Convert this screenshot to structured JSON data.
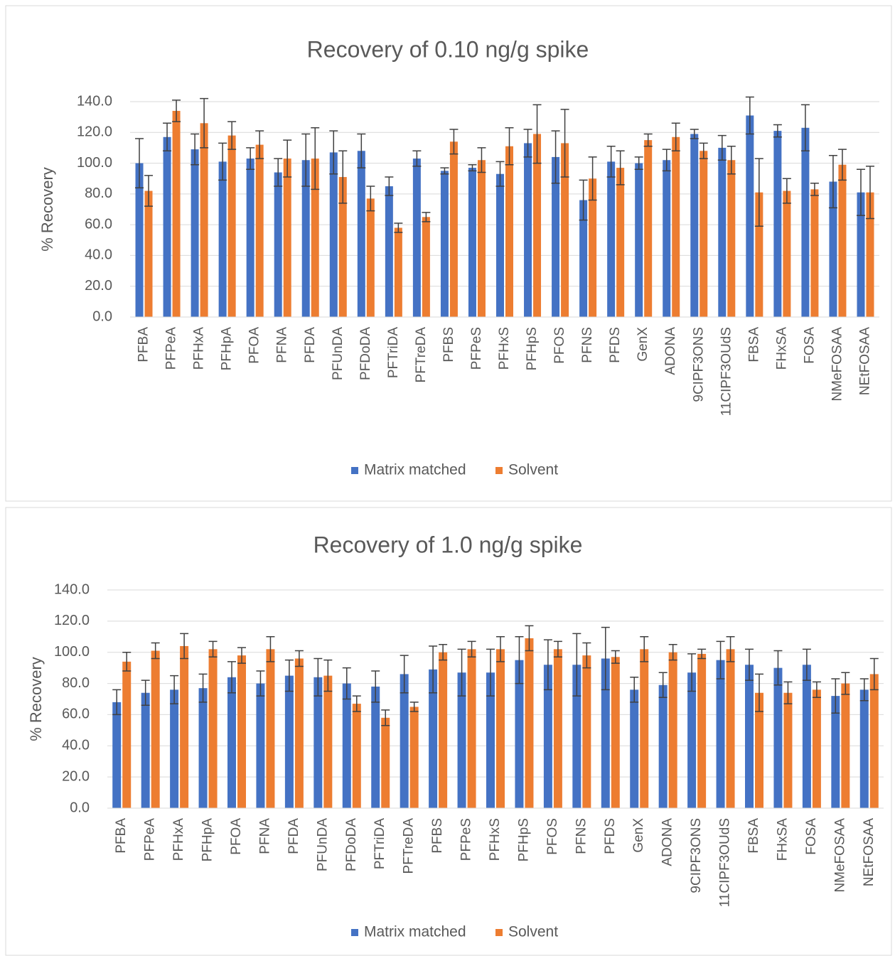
{
  "chart_data": [
    {
      "type": "bar",
      "title": "Recovery of 0.10 ng/g spike",
      "y_label": "% Recovery",
      "categories": [
        "PFBA",
        "PFPeA",
        "PFHxA",
        "PFHpA",
        "PFOA",
        "PFNA",
        "PFDA",
        "PFUnDA",
        "PFDoDA",
        "PFTriDA",
        "PFTreDA",
        "PFBS",
        "PFPeS",
        "PFHxS",
        "PFHpS",
        "PFOS",
        "PFNS",
        "PFDS",
        "GenX",
        "ADONA",
        "9CIPF3ONS",
        "11CIPF3OUdS",
        "FBSA",
        "FHxSA",
        "FOSA",
        "NMeFOSAA",
        "NEtFOSAA"
      ],
      "series": [
        {
          "name": "Matrix matched",
          "color": "#4472c4",
          "values": [
            100,
            117,
            109,
            101,
            103,
            94,
            102,
            107,
            108,
            85,
            103,
            95,
            97,
            93,
            113,
            104,
            76,
            101,
            100,
            102,
            119,
            110,
            131,
            121,
            123,
            88,
            81
          ],
          "errors": [
            16,
            9,
            10,
            12,
            7,
            9,
            17,
            14,
            11,
            6,
            5,
            2,
            2,
            8,
            9,
            17,
            13,
            10,
            4,
            7,
            3,
            8,
            12,
            4,
            15,
            17,
            15
          ]
        },
        {
          "name": "Solvent",
          "color": "#ed7d31",
          "values": [
            82,
            134,
            126,
            118,
            112,
            103,
            103,
            91,
            77,
            58,
            65,
            114,
            102,
            111,
            119,
            113,
            90,
            97,
            115,
            117,
            108,
            102,
            81,
            82,
            83,
            99,
            81
          ],
          "errors": [
            10,
            7,
            16,
            9,
            9,
            12,
            20,
            17,
            8,
            3,
            3,
            8,
            8,
            12,
            19,
            22,
            14,
            11,
            4,
            9,
            5,
            9,
            22,
            8,
            4,
            10,
            17
          ]
        }
      ],
      "ylim": [
        0,
        140
      ],
      "yticks": [
        {
          "value": 0,
          "label": "0.0"
        },
        {
          "value": 20,
          "label": "20.0"
        },
        {
          "value": 40,
          "label": "40.0"
        },
        {
          "value": 60,
          "label": "60.0"
        },
        {
          "value": 80,
          "label": "80.0"
        },
        {
          "value": 100,
          "label": "100.0"
        },
        {
          "value": 120,
          "label": "120.0"
        },
        {
          "value": 140,
          "label": "140.0"
        }
      ],
      "grid": true,
      "legend": "bottom"
    },
    {
      "type": "bar",
      "title": "Recovery of 1.0 ng/g spike",
      "y_label": "% Recovery",
      "categories": [
        "PFBA",
        "PFPeA",
        "PFHxA",
        "PFHpA",
        "PFOA",
        "PFNA",
        "PFDA",
        "PFUnDA",
        "PFDoDA",
        "PFTriDA",
        "PFTreDA",
        "PFBS",
        "PFPeS",
        "PFHxS",
        "PFHpS",
        "PFOS",
        "PFNS",
        "PFDS",
        "GenX",
        "ADONA",
        "9CIPF3ONS",
        "11CIPF3OUdS",
        "FBSA",
        "FHxSA",
        "FOSA",
        "NMeFOSAA",
        "NEtFOSAA"
      ],
      "series": [
        {
          "name": "Matrix matched",
          "color": "#4472c4",
          "values": [
            68,
            74,
            76,
            77,
            84,
            80,
            85,
            84,
            80,
            78,
            86,
            89,
            87,
            87,
            95,
            92,
            92,
            96,
            76,
            79,
            87,
            95,
            92,
            90,
            92,
            72,
            76
          ],
          "errors": [
            8,
            8,
            9,
            9,
            10,
            8,
            10,
            12,
            10,
            10,
            12,
            15,
            15,
            15,
            15,
            16,
            20,
            20,
            8,
            8,
            12,
            12,
            10,
            11,
            10,
            11,
            7
          ]
        },
        {
          "name": "Solvent",
          "color": "#ed7d31",
          "values": [
            94,
            101,
            104,
            102,
            98,
            102,
            96,
            85,
            67,
            58,
            65,
            100,
            102,
            102,
            109,
            102,
            98,
            97,
            102,
            100,
            99,
            102,
            74,
            74,
            76,
            80,
            86
          ],
          "errors": [
            6,
            5,
            8,
            5,
            5,
            8,
            5,
            10,
            5,
            5,
            3,
            5,
            5,
            8,
            8,
            5,
            8,
            4,
            8,
            5,
            3,
            8,
            12,
            7,
            5,
            7,
            10
          ]
        }
      ],
      "ylim": [
        0,
        140
      ],
      "yticks": [
        {
          "value": 0,
          "label": "0.0"
        },
        {
          "value": 20,
          "label": "20.0"
        },
        {
          "value": 40,
          "label": "40.0"
        },
        {
          "value": 60,
          "label": "60.0"
        },
        {
          "value": 80,
          "label": "80.0"
        },
        {
          "value": 100,
          "label": "100.0"
        },
        {
          "value": 120,
          "label": "120.0"
        },
        {
          "value": 140,
          "label": "140.0"
        }
      ],
      "grid": true,
      "legend": "bottom"
    }
  ]
}
